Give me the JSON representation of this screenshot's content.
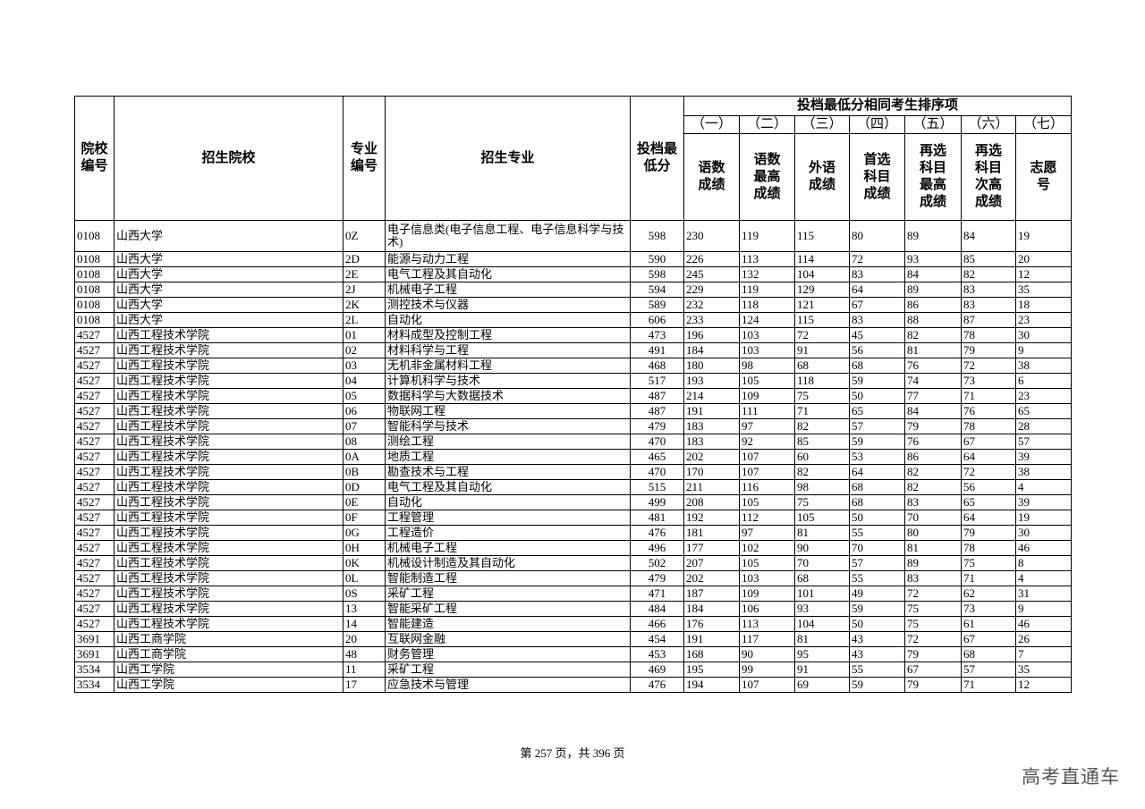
{
  "header": {
    "school_code": "院校编号",
    "school_name": "招生院校",
    "major_code": "专业编号",
    "major_name": "招生专业",
    "min_score": "投档最低分",
    "group_title": "投档最低分相同考生排序项",
    "sub_numbers": [
      "（一）",
      "（二）",
      "（三）",
      "（四）",
      "（五）",
      "（六）",
      "（七）"
    ],
    "sub_labels": [
      "语数成绩",
      "语数最高成绩",
      "外语成绩",
      "首选科目成绩",
      "再选科目最高成绩",
      "再选科目次高成绩",
      "志愿号"
    ]
  },
  "rows": [
    [
      "0108",
      "山西大学",
      "0Z",
      "电子信息类(电子信息工程、电子信息科学与技术)",
      "598",
      "230",
      "119",
      "115",
      "80",
      "89",
      "84",
      "19"
    ],
    [
      "0108",
      "山西大学",
      "2D",
      "能源与动力工程",
      "590",
      "226",
      "113",
      "114",
      "72",
      "93",
      "85",
      "20"
    ],
    [
      "0108",
      "山西大学",
      "2E",
      "电气工程及其自动化",
      "598",
      "245",
      "132",
      "104",
      "83",
      "84",
      "82",
      "12"
    ],
    [
      "0108",
      "山西大学",
      "2J",
      "机械电子工程",
      "594",
      "229",
      "119",
      "129",
      "64",
      "89",
      "83",
      "35"
    ],
    [
      "0108",
      "山西大学",
      "2K",
      "测控技术与仪器",
      "589",
      "232",
      "118",
      "121",
      "67",
      "86",
      "83",
      "18"
    ],
    [
      "0108",
      "山西大学",
      "2L",
      "自动化",
      "606",
      "233",
      "124",
      "115",
      "83",
      "88",
      "87",
      "23"
    ],
    [
      "4527",
      "山西工程技术学院",
      "01",
      "材料成型及控制工程",
      "473",
      "196",
      "103",
      "72",
      "45",
      "82",
      "78",
      "30"
    ],
    [
      "4527",
      "山西工程技术学院",
      "02",
      "材料科学与工程",
      "491",
      "184",
      "103",
      "91",
      "56",
      "81",
      "79",
      "9"
    ],
    [
      "4527",
      "山西工程技术学院",
      "03",
      "无机非金属材料工程",
      "468",
      "180",
      "98",
      "68",
      "68",
      "76",
      "72",
      "38"
    ],
    [
      "4527",
      "山西工程技术学院",
      "04",
      "计算机科学与技术",
      "517",
      "193",
      "105",
      "118",
      "59",
      "74",
      "73",
      "6"
    ],
    [
      "4527",
      "山西工程技术学院",
      "05",
      "数据科学与大数据技术",
      "487",
      "214",
      "109",
      "75",
      "50",
      "77",
      "71",
      "23"
    ],
    [
      "4527",
      "山西工程技术学院",
      "06",
      "物联网工程",
      "487",
      "191",
      "111",
      "71",
      "65",
      "84",
      "76",
      "65"
    ],
    [
      "4527",
      "山西工程技术学院",
      "07",
      "智能科学与技术",
      "479",
      "183",
      "97",
      "82",
      "57",
      "79",
      "78",
      "28"
    ],
    [
      "4527",
      "山西工程技术学院",
      "08",
      "测绘工程",
      "470",
      "183",
      "92",
      "85",
      "59",
      "76",
      "67",
      "57"
    ],
    [
      "4527",
      "山西工程技术学院",
      "0A",
      "地质工程",
      "465",
      "202",
      "107",
      "60",
      "53",
      "86",
      "64",
      "39"
    ],
    [
      "4527",
      "山西工程技术学院",
      "0B",
      "勘查技术与工程",
      "470",
      "170",
      "107",
      "82",
      "64",
      "82",
      "72",
      "38"
    ],
    [
      "4527",
      "山西工程技术学院",
      "0D",
      "电气工程及其自动化",
      "515",
      "211",
      "116",
      "98",
      "68",
      "82",
      "56",
      "4"
    ],
    [
      "4527",
      "山西工程技术学院",
      "0E",
      "自动化",
      "499",
      "208",
      "105",
      "75",
      "68",
      "83",
      "65",
      "39"
    ],
    [
      "4527",
      "山西工程技术学院",
      "0F",
      "工程管理",
      "481",
      "192",
      "112",
      "105",
      "50",
      "70",
      "64",
      "19"
    ],
    [
      "4527",
      "山西工程技术学院",
      "0G",
      "工程造价",
      "476",
      "181",
      "97",
      "81",
      "55",
      "80",
      "79",
      "30"
    ],
    [
      "4527",
      "山西工程技术学院",
      "0H",
      "机械电子工程",
      "496",
      "177",
      "102",
      "90",
      "70",
      "81",
      "78",
      "46"
    ],
    [
      "4527",
      "山西工程技术学院",
      "0K",
      "机械设计制造及其自动化",
      "502",
      "207",
      "105",
      "70",
      "57",
      "89",
      "75",
      "8"
    ],
    [
      "4527",
      "山西工程技术学院",
      "0L",
      "智能制造工程",
      "479",
      "202",
      "103",
      "68",
      "55",
      "83",
      "71",
      "4"
    ],
    [
      "4527",
      "山西工程技术学院",
      "0S",
      "采矿工程",
      "471",
      "187",
      "109",
      "101",
      "49",
      "72",
      "62",
      "31"
    ],
    [
      "4527",
      "山西工程技术学院",
      "13",
      "智能采矿工程",
      "484",
      "184",
      "106",
      "93",
      "59",
      "75",
      "73",
      "9"
    ],
    [
      "4527",
      "山西工程技术学院",
      "14",
      "智能建造",
      "466",
      "176",
      "113",
      "104",
      "50",
      "75",
      "61",
      "46"
    ],
    [
      "3691",
      "山西工商学院",
      "20",
      "互联网金融",
      "454",
      "191",
      "117",
      "81",
      "43",
      "72",
      "67",
      "26"
    ],
    [
      "3691",
      "山西工商学院",
      "48",
      "财务管理",
      "453",
      "168",
      "90",
      "95",
      "43",
      "79",
      "68",
      "7"
    ],
    [
      "3534",
      "山西工学院",
      "11",
      "采矿工程",
      "469",
      "195",
      "99",
      "91",
      "55",
      "67",
      "57",
      "35"
    ],
    [
      "3534",
      "山西工学院",
      "17",
      "应急技术与管理",
      "476",
      "194",
      "107",
      "69",
      "59",
      "79",
      "71",
      "12"
    ]
  ],
  "footer": {
    "page_text": "第 257 页，共 396 页"
  },
  "watermark": "高考直通车"
}
